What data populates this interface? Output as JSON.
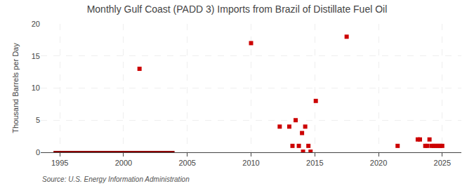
{
  "chart_data": {
    "type": "scatter",
    "title": "Monthly Gulf Coast (PADD 3) Imports from Brazil of Distillate Fuel Oil",
    "ylabel": "Thousand Barrels per Day",
    "annotations": [
      "Source: U.S. Energy Information Administration"
    ],
    "xlim": [
      1993.5,
      2026.5
    ],
    "xticks": [
      1995,
      2000,
      2005,
      2010,
      2015,
      2020,
      2025
    ],
    "ylim": [
      0,
      20
    ],
    "yticks": [
      0,
      5,
      10,
      15,
      20
    ],
    "grid": true,
    "series": [
      {
        "type": "scatter",
        "color": "#cc0000",
        "marker": "square",
        "x": [
          2001.25,
          2010.0,
          2012.25,
          2013.0,
          2013.25,
          2013.5,
          2013.75,
          2014.0,
          2014.08,
          2014.25,
          2014.5,
          2014.67,
          2015.08,
          2017.5,
          2021.5,
          2023.08,
          2023.25,
          2023.67,
          2023.83,
          2024.0,
          2024.17,
          2024.33,
          2024.5,
          2024.67,
          2024.83,
          2025.0
        ],
        "values": [
          13.0,
          17.0,
          4.0,
          4.0,
          1.0,
          5.0,
          1.0,
          3.0,
          0.1,
          4.0,
          1.0,
          0.1,
          8.0,
          18.0,
          1.0,
          2.0,
          2.0,
          1.0,
          1.0,
          2.0,
          1.0,
          1.0,
          1.0,
          1.0,
          1.0,
          1.0
        ]
      },
      {
        "type": "line",
        "color": "#8b0000",
        "line_style": "solid",
        "x": [
          1994.5,
          2004.0
        ],
        "values": [
          0,
          0
        ]
      }
    ]
  }
}
